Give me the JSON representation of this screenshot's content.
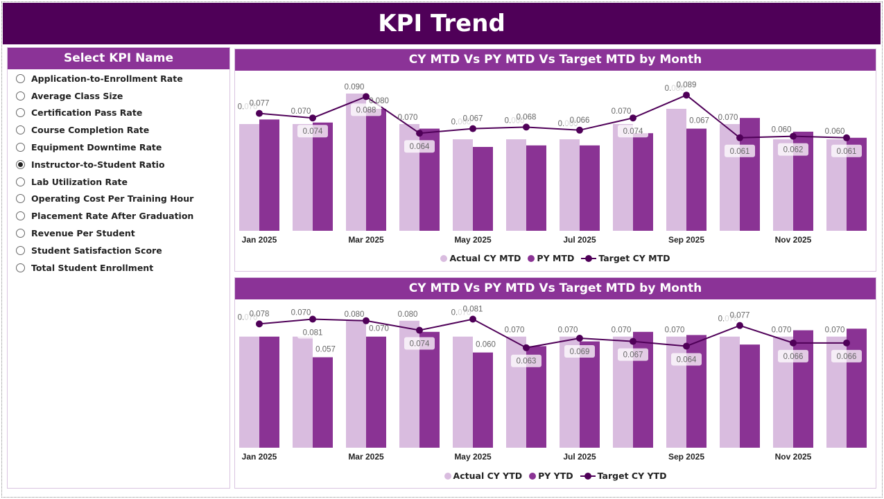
{
  "header": {
    "title": "KPI Trend"
  },
  "sidebar": {
    "title": "Select KPI Name",
    "selected": "Instructor-to-Student Ratio",
    "items": [
      "Application-to-Enrollment Rate",
      "Average Class Size",
      "Certification Pass Rate",
      "Course Completion Rate",
      "Equipment Downtime Rate",
      "Instructor-to-Student Ratio",
      "Lab Utilization Rate",
      "Operating Cost Per Training Hour",
      "Placement Rate After Graduation",
      "Revenue Per Student",
      "Student Satisfaction Score",
      "Total Student Enrollment"
    ]
  },
  "colors": {
    "header": "#4f0058",
    "panel_header": "#8b3397",
    "actual": "#d9bcdf",
    "py": "#8a3394",
    "target": "#4f0058"
  },
  "chart_data": [
    {
      "type": "bar+line",
      "title": "CY MTD Vs PY MTD Vs Target MTD by Month",
      "x_tick_labels": [
        "Jan 2025",
        "Mar 2025",
        "May 2025",
        "Jul 2025",
        "Sep 2025",
        "Nov 2025"
      ],
      "legend": [
        "Actual CY MTD",
        "PY MTD",
        "Target CY MTD"
      ],
      "legend_position": "bottom",
      "ylim": [
        0,
        0.1
      ],
      "grid": false,
      "series": [
        {
          "name": "Actual CY MTD",
          "values": [
            0.07,
            0.07,
            0.09,
            0.07,
            0.06,
            0.06,
            0.06,
            0.07,
            0.08,
            0.07,
            0.06,
            0.06
          ],
          "labels": [
            "0.070",
            "0.070",
            "0.090",
            "0.070",
            "0.060",
            "0.060",
            "0.060",
            "0.070",
            "0.080",
            "0.070",
            "0.060",
            "0.060"
          ]
        },
        {
          "name": "PY MTD",
          "values": [
            0.073,
            0.071,
            0.08,
            0.067,
            0.055,
            0.056,
            0.056,
            0.064,
            0.067,
            0.074,
            0.065,
            0.061
          ],
          "labels": [
            null,
            null,
            "0.080",
            null,
            null,
            null,
            null,
            null,
            "0.067",
            null,
            null,
            null
          ]
        },
        {
          "name": "Target CY MTD",
          "values": [
            0.077,
            0.074,
            0.088,
            0.064,
            0.067,
            0.068,
            0.066,
            0.074,
            0.089,
            0.061,
            0.062,
            0.061
          ],
          "labels": [
            "0.077",
            "0.074",
            "0.088",
            "0.064",
            "0.067",
            "0.068",
            "0.066",
            "0.074",
            "0.089",
            "0.061",
            "0.062",
            "0.061"
          ]
        }
      ]
    },
    {
      "type": "bar+line",
      "title": "CY MTD Vs PY MTD Vs Target MTD by Month",
      "x_tick_labels": [
        "Jan 2025",
        "Mar 2025",
        "May 2025",
        "Jul 2025",
        "Sep 2025",
        "Nov 2025"
      ],
      "legend": [
        "Actual CY YTD",
        "PY YTD",
        "Target CY YTD"
      ],
      "legend_position": "bottom",
      "ylim": [
        0,
        0.1
      ],
      "grid": false,
      "series": [
        {
          "name": "Actual CY YTD",
          "values": [
            0.07,
            0.07,
            0.08,
            0.08,
            0.07,
            0.07,
            0.07,
            0.07,
            0.07,
            0.07,
            0.07,
            0.07
          ],
          "labels": [
            "0.070",
            "0.070",
            "0.080",
            "0.080",
            "0.070",
            "0.070",
            "0.070",
            "0.070",
            "0.070",
            "0.070",
            "0.070",
            "0.070"
          ]
        },
        {
          "name": "PY YTD",
          "values": [
            0.07,
            0.057,
            0.07,
            0.073,
            0.06,
            0.064,
            0.067,
            0.073,
            0.071,
            0.065,
            0.074,
            0.075
          ],
          "labels": [
            null,
            "0.057",
            "0.070",
            null,
            "0.060",
            null,
            null,
            null,
            null,
            null,
            null,
            null
          ]
        },
        {
          "name": "Target CY YTD",
          "values": [
            0.078,
            0.081,
            0.08,
            0.074,
            0.081,
            0.063,
            0.069,
            0.067,
            0.064,
            0.077,
            0.066,
            0.066
          ],
          "labels": [
            "0.078",
            "0.081",
            null,
            "0.074",
            "0.081",
            "0.063",
            "0.069",
            "0.067",
            "0.064",
            "0.077",
            "0.066",
            "0.066"
          ]
        }
      ]
    }
  ]
}
